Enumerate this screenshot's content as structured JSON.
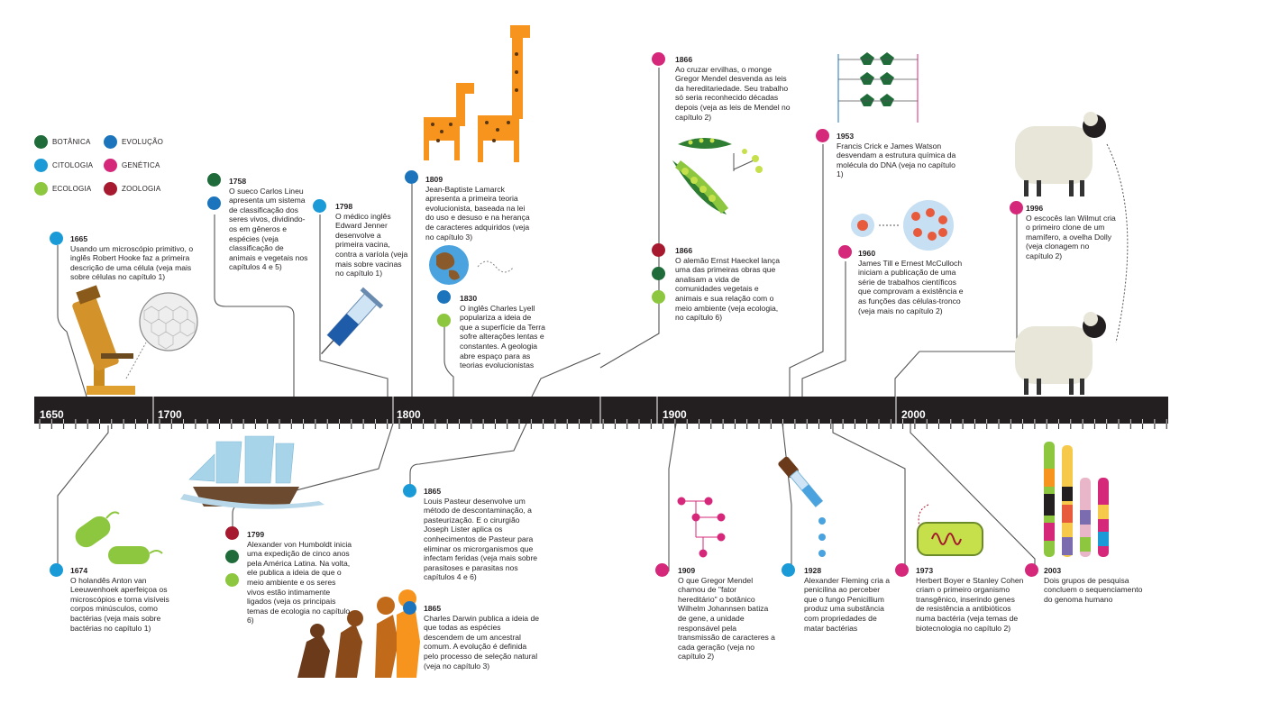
{
  "colors": {
    "botanica": "#1f6b3a",
    "citologia": "#1a9ad6",
    "ecologia": "#8dc63f",
    "evolucao": "#1c75bc",
    "genetica": "#d6287a",
    "zoologia": "#a6192e",
    "timeline_bar": "#231f20"
  },
  "legend": [
    {
      "key": "botanica",
      "label": "BOTÂNICA",
      "icon": "leaf-icon"
    },
    {
      "key": "evolucao",
      "label": "EVOLUÇÃO",
      "icon": "evolution-icon"
    },
    {
      "key": "citologia",
      "label": "CITOLOGIA",
      "icon": "cell-icon"
    },
    {
      "key": "genetica",
      "label": "GENÉTICA",
      "icon": "dna-icon"
    },
    {
      "key": "ecologia",
      "label": "ECOLOGIA",
      "icon": "ecology-icon"
    },
    {
      "key": "zoologia",
      "label": "ZOOLOGIA",
      "icon": "cow-icon"
    }
  ],
  "timeline": {
    "labels": [
      "1650",
      "1700",
      "1800",
      "1900",
      "2000"
    ]
  },
  "events": {
    "e1665": {
      "year": "1665",
      "text": "Usando um microscópio primitivo, o inglês Robert Hooke faz a primeira descrição de uma célula (veja mais sobre células no capítulo 1)"
    },
    "e1674": {
      "year": "1674",
      "text": "O holandês Anton van Leeuwenhoek aperfeiçoa os microscópios e torna visíveis corpos minúsculos, como bactérias (veja mais sobre bactérias no capítulo 1)"
    },
    "e1758": {
      "year": "1758",
      "text": "O sueco Carlos Lineu apresenta um sistema de classificação dos seres vivos, dividindo-os em gêneros e espécies (veja classificação de animais e vegetais nos capítulos 4 e 5)"
    },
    "e1798": {
      "year": "1798",
      "text": "O médico inglês Edward Jenner desenvolve a primeira vacina, contra a varíola (veja mais sobre vacinas no capítulo 1)"
    },
    "e1799": {
      "year": "1799",
      "text": "Alexander von Humboldt inicia uma expedição de cinco anos pela América Latina. Na volta, ele publica a ideia de que o meio ambiente e os seres vivos estão intimamente ligados (veja os principais temas de ecologia no capítulo 6)"
    },
    "e1809": {
      "year": "1809",
      "text": "Jean-Baptiste Lamarck apresenta a primeira teoria evolucionista, baseada na lei do uso e desuso e na herança de caracteres adquiridos (veja no capítulo 3)"
    },
    "e1830": {
      "year": "1830",
      "text": "O inglês Charles Lyell populariza a ideia de que a superfície da Terra sofre alterações lentas e constantes. A geologia abre espaço para as teorias evolucionistas"
    },
    "e1865a": {
      "year": "1865",
      "text": "Louis Pasteur desenvolve um método de descontaminação, a pasteurização. E o cirurgião Joseph Lister aplica os conhecimentos de Pasteur para eliminar os microrganismos que infectam feridas (veja mais sobre parasitoses e parasitas nos capítulos 4 e 6)"
    },
    "e1865b": {
      "year": "1865",
      "text": "Charles Darwin publica a ideia de que todas as espécies descendem de um ancestral comum. A evolução é definida pelo processo de seleção natural (veja no capítulo 3)"
    },
    "e1866a": {
      "year": "1866",
      "text": "Ao cruzar ervilhas, o monge Gregor Mendel desvenda as leis da hereditariedade. Seu trabalho só seria reconhecido décadas depois (veja as leis de Mendel no capítulo 2)"
    },
    "e1866b": {
      "year": "1866",
      "text": "O alemão Ernst Haeckel lança uma das primeiras obras que analisam a vida de comunidades vegetais e animais e sua relação com o meio ambiente (veja ecologia, no capítulo 6)"
    },
    "e1909": {
      "year": "1909",
      "text": "O que Gregor Mendel chamou de \"fator hereditário\" o botânico Wilhelm Johannsen batiza de gene, a unidade responsável pela transmissão de caracteres a cada geração (veja no capítulo 2)"
    },
    "e1928": {
      "year": "1928",
      "text": "Alexander Fleming cria a penicilina ao perceber que o fungo Penicillium produz uma substância com propriedades de matar bactérias"
    },
    "e1953": {
      "year": "1953",
      "text": "Francis Crick e James Watson desvendam a estrutura química da molécula do DNA (veja no capítulo 1)"
    },
    "e1960": {
      "year": "1960",
      "text": "James Till e Ernest McCulloch iniciam a publicação de uma série de trabalhos científicos que comprovam a existência e as funções das células-tronco (veja mais no capítulo 2)"
    },
    "e1973": {
      "year": "1973",
      "text": "Herbert Boyer e Stanley Cohen criam o primeiro organismo transgênico, inserindo genes de resistência a antibióticos numa bactéria (veja temas de biotecnologia no capítulo 2)"
    },
    "e1996": {
      "year": "1996",
      "text": "O escocês Ian Wilmut cria o primeiro clone de um mamífero, a ovelha Dolly (veja clonagem no capítulo 2)"
    },
    "e2003": {
      "year": "2003",
      "text": "Dois grupos de pesquisa concluem o sequenciamento do genoma humano"
    }
  }
}
